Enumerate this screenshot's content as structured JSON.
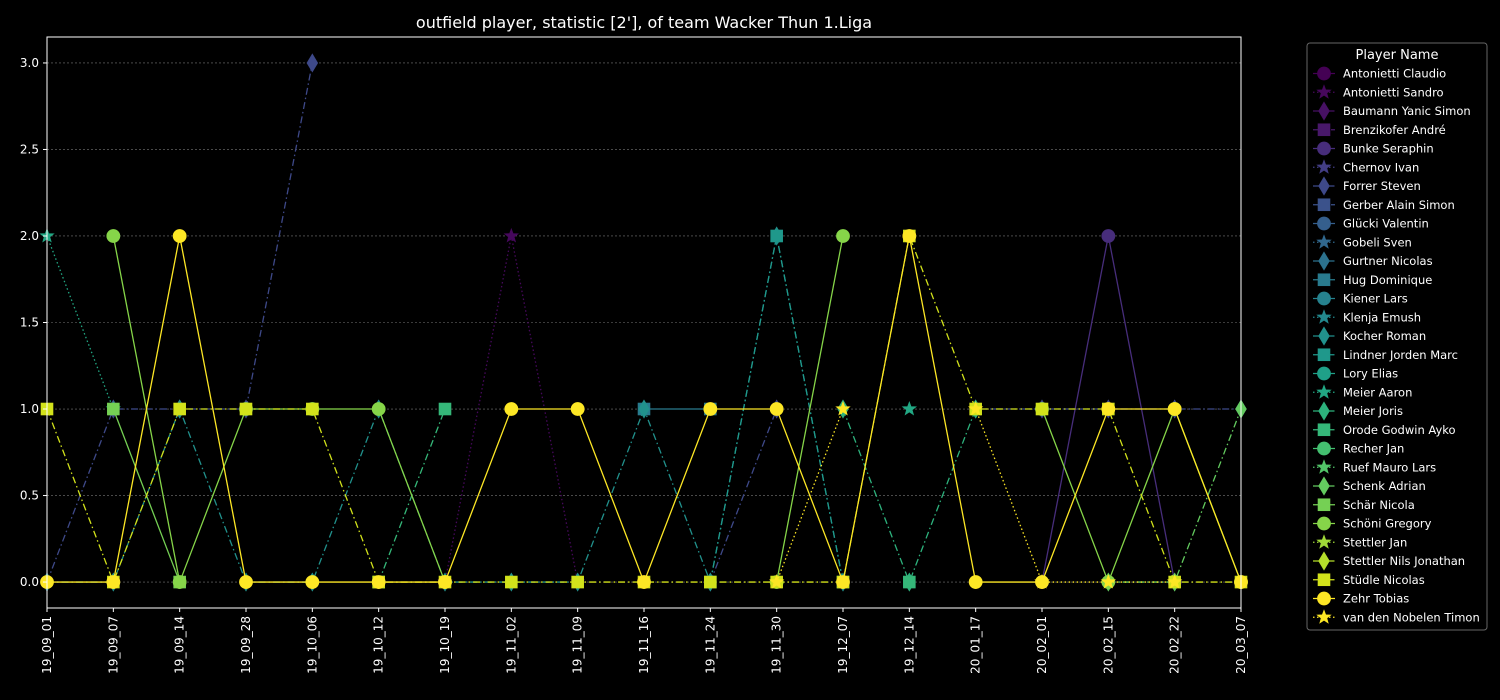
{
  "chart_data": {
    "type": "line",
    "title": "outfield player, statistic [2'], of team Wacker Thun 1.Liga",
    "xlabel": "",
    "ylabel": "",
    "ylim": [
      -0.15,
      3.15
    ],
    "yticks": [
      "0.0",
      "0.5",
      "1.0",
      "1.5",
      "2.0",
      "2.5",
      "3.0"
    ],
    "grid": true,
    "legend_title": "Player Name",
    "legend_position": "outside-right",
    "categories": [
      "19_09_01",
      "19_09_07",
      "19_09_14",
      "19_09_28",
      "19_10_06",
      "19_10_12",
      "19_10_19",
      "19_11_02",
      "19_11_09",
      "19_11_16",
      "19_11_24",
      "19_11_30",
      "19_12_07",
      "19_12_14",
      "20_01_17",
      "20_02_01",
      "20_02_15",
      "20_02_22",
      "20_03_07"
    ],
    "series": [
      {
        "name": "Antonietti Claudio",
        "color": "#440154",
        "marker": "circle",
        "dash": "solid",
        "values": [
          null,
          null,
          null,
          null,
          null,
          null,
          null,
          null,
          null,
          null,
          null,
          null,
          null,
          null,
          null,
          null,
          null,
          null,
          null
        ]
      },
      {
        "name": "Antonietti Sandro",
        "color": "#46085c",
        "marker": "star",
        "dash": "dotted",
        "values": [
          null,
          null,
          null,
          null,
          null,
          null,
          0,
          2,
          0,
          null,
          null,
          null,
          null,
          null,
          null,
          null,
          null,
          null,
          null
        ]
      },
      {
        "name": "Baumann Yanic Simon",
        "color": "#471164",
        "marker": "diamond",
        "dash": "dashdot",
        "values": [
          null,
          null,
          null,
          null,
          null,
          null,
          null,
          null,
          null,
          null,
          null,
          null,
          null,
          null,
          null,
          null,
          null,
          null,
          null
        ]
      },
      {
        "name": "Brenzikofer André",
        "color": "#48186a",
        "marker": "square",
        "dash": "dashed",
        "values": [
          null,
          null,
          null,
          null,
          null,
          null,
          null,
          null,
          null,
          null,
          null,
          null,
          null,
          null,
          null,
          null,
          null,
          null,
          null
        ]
      },
      {
        "name": "Bunke Seraphin",
        "color": "#472d7b",
        "marker": "circle",
        "dash": "solid",
        "values": [
          null,
          null,
          null,
          null,
          null,
          null,
          null,
          null,
          null,
          null,
          null,
          null,
          null,
          null,
          null,
          0,
          2,
          0,
          null
        ]
      },
      {
        "name": "Chernov Ivan",
        "color": "#433e85",
        "marker": "star",
        "dash": "dotted",
        "values": [
          null,
          null,
          null,
          null,
          null,
          null,
          null,
          null,
          null,
          null,
          null,
          null,
          null,
          null,
          null,
          null,
          null,
          null,
          null
        ]
      },
      {
        "name": "Forrer Steven",
        "color": "#3e4989",
        "marker": "diamond",
        "dash": "dashdot",
        "values": [
          0,
          1,
          1,
          1,
          3,
          null,
          null,
          null,
          null,
          null,
          0,
          1,
          null,
          null,
          1,
          1,
          1,
          1,
          1
        ]
      },
      {
        "name": "Gerber Alain Simon",
        "color": "#3b528b",
        "marker": "square",
        "dash": "dashed",
        "values": [
          null,
          null,
          null,
          null,
          null,
          null,
          null,
          null,
          null,
          null,
          null,
          null,
          null,
          null,
          null,
          null,
          null,
          null,
          null
        ]
      },
      {
        "name": "Glücki Valentin",
        "color": "#355f8d",
        "marker": "circle",
        "dash": "solid",
        "values": [
          null,
          null,
          null,
          null,
          null,
          null,
          null,
          null,
          null,
          null,
          null,
          null,
          null,
          null,
          null,
          null,
          null,
          null,
          null
        ]
      },
      {
        "name": "Gobeli Sven",
        "color": "#31688e",
        "marker": "star",
        "dash": "dotted",
        "values": [
          null,
          null,
          null,
          null,
          null,
          null,
          null,
          null,
          null,
          null,
          null,
          null,
          null,
          null,
          null,
          null,
          null,
          null,
          null
        ]
      },
      {
        "name": "Gurtner Nicolas",
        "color": "#2c728e",
        "marker": "diamond",
        "dash": "dashdot",
        "values": [
          null,
          null,
          null,
          null,
          null,
          null,
          null,
          null,
          null,
          null,
          null,
          null,
          null,
          null,
          null,
          null,
          null,
          null,
          null
        ]
      },
      {
        "name": "Hug Dominique",
        "color": "#297b8e",
        "marker": "square",
        "dash": "solid",
        "values": [
          null,
          null,
          null,
          null,
          null,
          null,
          null,
          null,
          null,
          1,
          1,
          null,
          null,
          null,
          null,
          null,
          null,
          null,
          null
        ]
      },
      {
        "name": "Kiener Lars",
        "color": "#26828e",
        "marker": "circle",
        "dash": "solid",
        "values": [
          null,
          null,
          null,
          null,
          null,
          null,
          null,
          null,
          null,
          null,
          null,
          null,
          null,
          null,
          null,
          null,
          null,
          null,
          null
        ]
      },
      {
        "name": "Klenja Emush",
        "color": "#23898e",
        "marker": "star",
        "dash": "dotted",
        "values": [
          null,
          null,
          null,
          null,
          null,
          null,
          null,
          null,
          null,
          null,
          null,
          null,
          null,
          null,
          null,
          null,
          null,
          null,
          null
        ]
      },
      {
        "name": "Kocher Roman",
        "color": "#21918c",
        "marker": "diamond",
        "dash": "dashdot",
        "values": [
          0,
          0,
          1,
          0,
          0,
          1,
          0,
          0,
          0,
          1,
          0,
          2,
          0,
          null,
          null,
          null,
          null,
          null,
          null
        ]
      },
      {
        "name": "Lindner Jorden Marc",
        "color": "#1f988b",
        "marker": "square",
        "dash": "dashdot",
        "values": [
          null,
          null,
          null,
          null,
          null,
          null,
          null,
          null,
          null,
          null,
          0,
          2,
          0,
          null,
          null,
          null,
          null,
          null,
          null
        ]
      },
      {
        "name": "Lory Elias",
        "color": "#1fa088",
        "marker": "circle",
        "dash": "solid",
        "values": [
          null,
          null,
          null,
          null,
          null,
          null,
          null,
          null,
          null,
          null,
          null,
          null,
          null,
          null,
          null,
          null,
          null,
          null,
          null
        ]
      },
      {
        "name": "Meier Aaron",
        "color": "#22a884",
        "marker": "star",
        "dash": "dotted",
        "values": [
          2,
          1,
          null,
          null,
          null,
          null,
          null,
          null,
          null,
          null,
          null,
          null,
          null,
          1,
          null,
          null,
          null,
          null,
          null
        ]
      },
      {
        "name": "Meier Joris",
        "color": "#2db27d",
        "marker": "diamond",
        "dash": "dashdot",
        "values": [
          null,
          null,
          null,
          null,
          null,
          null,
          null,
          null,
          null,
          null,
          null,
          null,
          1,
          0,
          1,
          null,
          null,
          null,
          null
        ]
      },
      {
        "name": "Orode Godwin Ayko",
        "color": "#35b779",
        "marker": "square",
        "dash": "dashdot",
        "values": [
          null,
          null,
          null,
          null,
          null,
          0,
          1,
          null,
          null,
          null,
          null,
          null,
          null,
          0,
          null,
          null,
          null,
          null,
          null
        ]
      },
      {
        "name": "Recher Jan",
        "color": "#44bf70",
        "marker": "circle",
        "dash": "solid",
        "values": [
          null,
          null,
          null,
          null,
          null,
          null,
          null,
          null,
          null,
          null,
          null,
          null,
          null,
          null,
          null,
          null,
          null,
          null,
          null
        ]
      },
      {
        "name": "Ruef Mauro Lars",
        "color": "#52c569",
        "marker": "star",
        "dash": "dotted",
        "values": [
          null,
          null,
          null,
          null,
          null,
          null,
          null,
          null,
          null,
          null,
          null,
          null,
          null,
          null,
          null,
          null,
          null,
          null,
          null
        ]
      },
      {
        "name": "Schenk Adrian",
        "color": "#63cb5f",
        "marker": "diamond",
        "dash": "dashdot",
        "values": [
          null,
          null,
          null,
          null,
          null,
          null,
          null,
          null,
          null,
          null,
          null,
          null,
          null,
          null,
          null,
          null,
          0,
          0,
          1
        ]
      },
      {
        "name": "Schär Nicola",
        "color": "#75d054",
        "marker": "square",
        "dash": "solid",
        "values": [
          null,
          1,
          0,
          null,
          null,
          null,
          null,
          null,
          null,
          null,
          null,
          null,
          null,
          null,
          null,
          null,
          null,
          null,
          null
        ]
      },
      {
        "name": "Schöni Gregory",
        "color": "#86d549",
        "marker": "circle",
        "dash": "solid",
        "values": [
          null,
          2,
          0,
          1,
          1,
          1,
          0,
          null,
          null,
          null,
          null,
          0,
          2,
          null,
          null,
          1,
          0,
          1,
          0
        ]
      },
      {
        "name": "Stettler Jan",
        "color": "#a0da39",
        "marker": "star",
        "dash": "dotted",
        "values": [
          null,
          null,
          null,
          null,
          null,
          null,
          null,
          null,
          null,
          null,
          null,
          null,
          null,
          null,
          null,
          null,
          null,
          null,
          null
        ]
      },
      {
        "name": "Stettler Nils Jonathan",
        "color": "#b5de2b",
        "marker": "diamond",
        "dash": "dashdot",
        "values": [
          null,
          null,
          null,
          null,
          null,
          null,
          null,
          null,
          null,
          null,
          null,
          null,
          null,
          null,
          null,
          null,
          null,
          null,
          null
        ]
      },
      {
        "name": "Stüdle Nicolas",
        "color": "#d2e21b",
        "marker": "square",
        "dash": "dashdot",
        "values": [
          1,
          0,
          1,
          1,
          1,
          0,
          0,
          0,
          0,
          0,
          0,
          0,
          0,
          2,
          1,
          1,
          1,
          0,
          0
        ]
      },
      {
        "name": "Zehr Tobias",
        "color": "#fde725",
        "marker": "circle",
        "dash": "solid",
        "values": [
          0,
          0,
          2,
          0,
          0,
          0,
          0,
          1,
          1,
          0,
          1,
          1,
          0,
          2,
          0,
          0,
          1,
          1,
          0
        ]
      },
      {
        "name": "van den Nobelen Timon",
        "color": "#fde725",
        "marker": "star",
        "dash": "dotted",
        "values": [
          null,
          null,
          null,
          null,
          null,
          null,
          null,
          null,
          null,
          null,
          null,
          0,
          1,
          null,
          1,
          0,
          0,
          0,
          null
        ]
      }
    ]
  }
}
